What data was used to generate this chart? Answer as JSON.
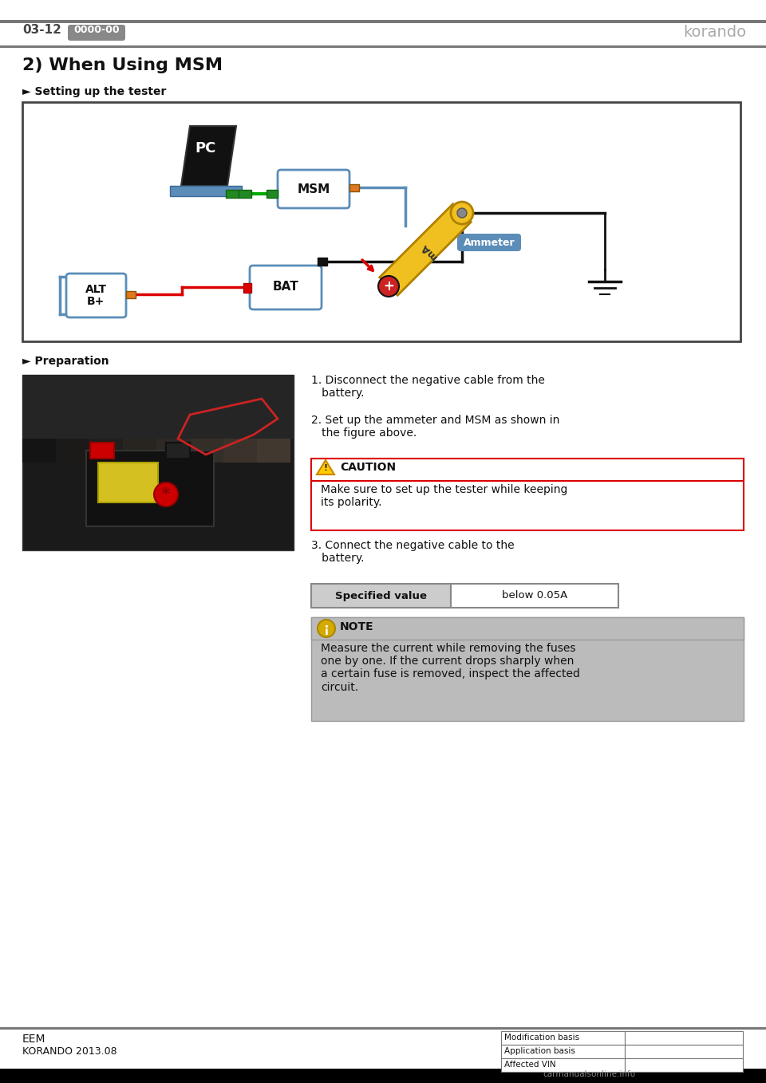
{
  "page_number": "03-12",
  "page_code": "0000-00",
  "brand": "korando",
  "section_title": "2) When Using MSM",
  "subsection1": "► Setting up the tester",
  "subsection2": "► Preparation",
  "footer_left1": "EEM",
  "footer_left2": "KORANDO 2013.08",
  "footer_table": [
    "Modification basis",
    "Application basis",
    "Affected VIN"
  ],
  "caution_title": "CAUTION",
  "caution_text": "Make sure to set up the tester while keeping\nits polarity.",
  "specified_label": "Specified value",
  "specified_value": "below 0.05A",
  "note_title": "NOTE",
  "note_text": "Measure the current while removing the fuses\none by one. If the current drops sharply when\na certain fuse is removed, inspect the affected\ncircuit.",
  "bg_color": "#ffffff",
  "header_bar_color": "#777777",
  "ammeter_label_bg": "#5b8db8",
  "wire_green": "#00aa00",
  "wire_red": "#dd0000",
  "wire_blue": "#5b8db8",
  "wire_black": "#111111",
  "ammeter_body": "#f0c020",
  "connector_orange": "#e07820",
  "caution_border": "#dd0000",
  "caution_bg": "#ffffff",
  "note_bg": "#bbbbbb",
  "specified_bg": "#cccccc"
}
